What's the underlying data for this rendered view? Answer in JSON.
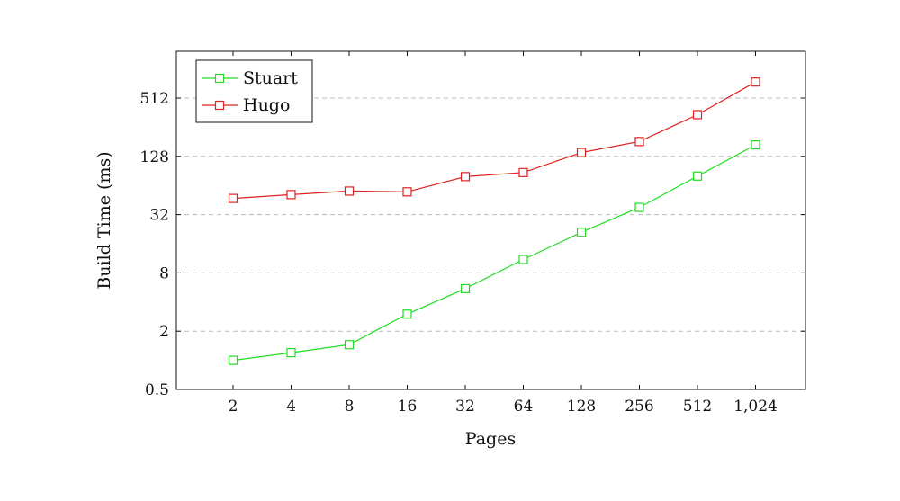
{
  "chart_data": {
    "type": "line",
    "title": "",
    "xlabel": "Pages",
    "ylabel": "Build Time (ms)",
    "y_scale": "log2",
    "x_scale": "log2",
    "ylim": [
      0.5,
      1400
    ],
    "grid": "horizontal-dashed",
    "legend_position": "top-left",
    "x_ticks": [
      2,
      4,
      8,
      16,
      32,
      64,
      128,
      256,
      512,
      1024
    ],
    "x_tick_labels": [
      "2",
      "4",
      "8",
      "16",
      "32",
      "64",
      "128",
      "256",
      "512",
      "1,024"
    ],
    "y_ticks": [
      0.5,
      2,
      8,
      32,
      128,
      512
    ],
    "y_tick_labels": [
      "0.5",
      "2",
      "8",
      "32",
      "128",
      "512"
    ],
    "series": [
      {
        "name": "Stuart",
        "color": "#22dd22",
        "marker": "square",
        "x": [
          2,
          4,
          8,
          16,
          32,
          64,
          128,
          256,
          512,
          1024
        ],
        "values": [
          1.0,
          1.2,
          1.45,
          3.0,
          5.5,
          11,
          21,
          38,
          80,
          168
        ]
      },
      {
        "name": "Hugo",
        "color": "#dd2222",
        "marker": "square",
        "x": [
          2,
          4,
          8,
          16,
          32,
          64,
          128,
          256,
          512,
          1024
        ],
        "values": [
          47,
          51.5,
          56,
          55,
          79,
          87,
          140,
          182,
          345,
          750
        ]
      }
    ]
  }
}
